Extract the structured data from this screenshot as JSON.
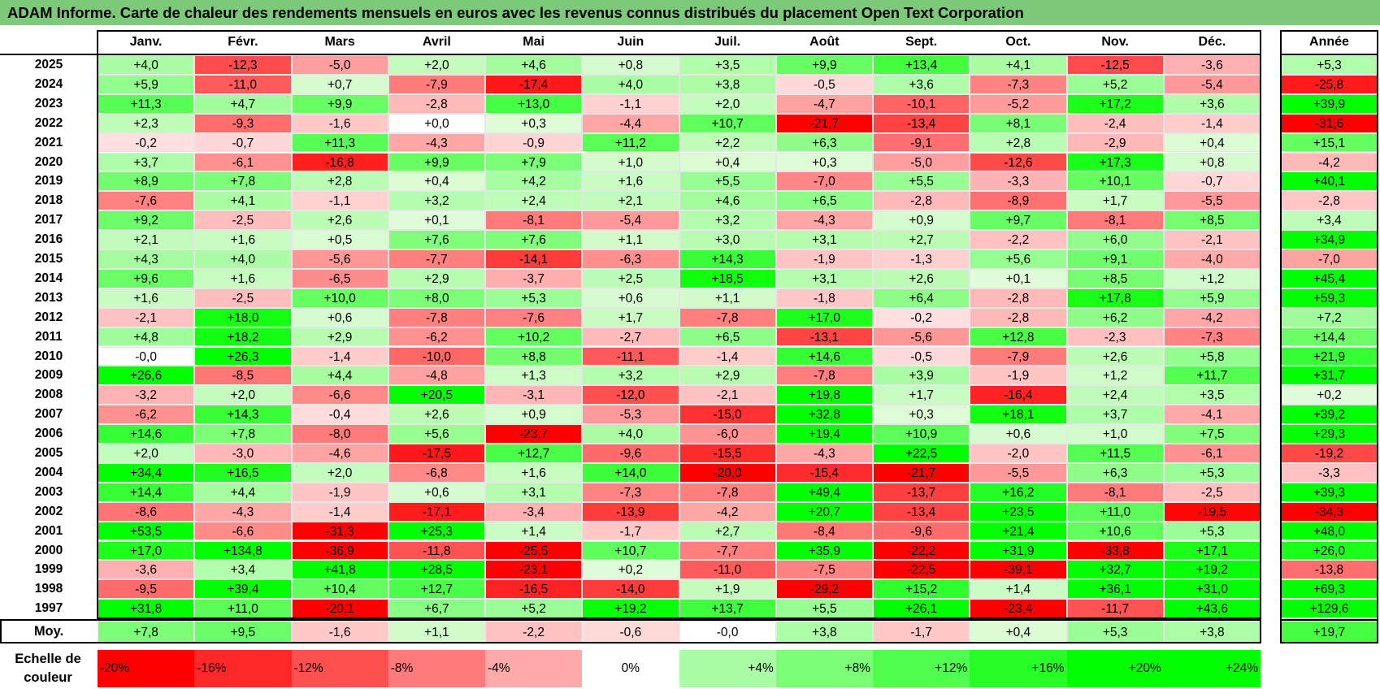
{
  "title": "ADAM Informe. Carte de chaleur des rendements mensuels en euros avec les revenus connus distribués du placement Open Text Corporation",
  "months": [
    "Janv.",
    "Févr.",
    "Mars",
    "Avril",
    "Mai",
    "Juin",
    "Juil.",
    "Août",
    "Sept.",
    "Oct.",
    "Nov.",
    "Déc."
  ],
  "year_header": "Année",
  "avg_label": "Moy.",
  "scale_label": "Echelle de couleur",
  "scale": [
    "-20%",
    "-16%",
    "-12%",
    "-8%",
    "-4%",
    "0%",
    "+4%",
    "+8%",
    "+12%",
    "+16%",
    "+20%",
    "+24%"
  ],
  "colors": {
    "title_bg": "#7dc97a",
    "neg": "#ff0000",
    "pos": "#00ff00",
    "zero": "#ffffff"
  },
  "chart_data": {
    "type": "heatmap",
    "title": "ADAM Informe. Carte de chaleur des rendements mensuels en euros avec les revenus connus distribués du placement Open Text Corporation",
    "columns": [
      "Janv.",
      "Févr.",
      "Mars",
      "Avril",
      "Mai",
      "Juin",
      "Juil.",
      "Août",
      "Sept.",
      "Oct.",
      "Nov.",
      "Déc."
    ],
    "rows": [
      {
        "year": "2025",
        "values": [
          "+4,0",
          "-12,3",
          "-5,0",
          "+2,0",
          "+4,6",
          "+0,8",
          "+3,5",
          "+9,9",
          "+13,4",
          "+4,1",
          "-12,5",
          "-3,6"
        ],
        "annual": "+5,3"
      },
      {
        "year": "2024",
        "values": [
          "+5,9",
          "-11,0",
          "+0,7",
          "-7,9",
          "-17,4",
          "+4,0",
          "+3,8",
          "-0,5",
          "+3,6",
          "-7,3",
          "+5,2",
          "-5,4"
        ],
        "annual": "-25,8"
      },
      {
        "year": "2023",
        "values": [
          "+11,3",
          "+4,7",
          "+9,9",
          "-2,8",
          "+13,0",
          "-1,1",
          "+2,0",
          "-4,7",
          "-10,1",
          "-5,2",
          "+17,2",
          "+3,6"
        ],
        "annual": "+39,9"
      },
      {
        "year": "2022",
        "values": [
          "+2,3",
          "-9,3",
          "-1,6",
          "+0,0",
          "+0,3",
          "-4,4",
          "+10,7",
          "-21,7",
          "-13,4",
          "+8,1",
          "-2,4",
          "-1,4"
        ],
        "annual": "-31,6"
      },
      {
        "year": "2021",
        "values": [
          "-0,2",
          "-0,7",
          "+11,3",
          "-4,3",
          "-0,9",
          "+11,2",
          "+2,2",
          "+6,3",
          "-9,1",
          "+2,8",
          "-2,9",
          "+0,4"
        ],
        "annual": "+15,1"
      },
      {
        "year": "2020",
        "values": [
          "+3,7",
          "-6,1",
          "-16,8",
          "+9,9",
          "+7,9",
          "+1,0",
          "+0,4",
          "+0,3",
          "-5,0",
          "-12,6",
          "+17,3",
          "+0,8"
        ],
        "annual": "-4,2"
      },
      {
        "year": "2019",
        "values": [
          "+8,9",
          "+7,8",
          "+2,8",
          "+0,4",
          "+4,2",
          "+1,6",
          "+5,5",
          "-7,0",
          "+5,5",
          "-3,3",
          "+10,1",
          "-0,7"
        ],
        "annual": "+40,1"
      },
      {
        "year": "2018",
        "values": [
          "-7,6",
          "+4,1",
          "-1,1",
          "+3,2",
          "+2,4",
          "+2,1",
          "+4,6",
          "+6,5",
          "-2,8",
          "-8,9",
          "+1,7",
          "-5,5"
        ],
        "annual": "-2,8"
      },
      {
        "year": "2017",
        "values": [
          "+9,2",
          "-2,5",
          "+2,6",
          "+0,1",
          "-8,1",
          "-5,4",
          "+3,2",
          "-4,3",
          "+0,9",
          "+9,7",
          "-8,1",
          "+8,5"
        ],
        "annual": "+3,4"
      },
      {
        "year": "2016",
        "values": [
          "+2,1",
          "+1,6",
          "+0,5",
          "+7,6",
          "+7,6",
          "+1,1",
          "+3,0",
          "+3,1",
          "+2,7",
          "-2,2",
          "+6,0",
          "-2,1"
        ],
        "annual": "+34,9"
      },
      {
        "year": "2015",
        "values": [
          "+4,3",
          "+4,0",
          "-5,6",
          "-7,7",
          "-14,1",
          "-6,3",
          "+14,3",
          "-1,9",
          "-1,3",
          "+5,6",
          "+9,1",
          "-4,0"
        ],
        "annual": "-7,0"
      },
      {
        "year": "2014",
        "values": [
          "+9,6",
          "+1,6",
          "-6,5",
          "+2,9",
          "-3,7",
          "+2,5",
          "+18,5",
          "+3,1",
          "+2,6",
          "+0,1",
          "+8,5",
          "+1,2"
        ],
        "annual": "+45,4"
      },
      {
        "year": "2013",
        "values": [
          "+1,6",
          "-2,5",
          "+10,0",
          "+8,0",
          "+5,3",
          "+0,6",
          "+1,1",
          "-1,8",
          "+6,4",
          "-2,8",
          "+17,8",
          "+5,9"
        ],
        "annual": "+59,3"
      },
      {
        "year": "2012",
        "values": [
          "-2,1",
          "+18,0",
          "+0,6",
          "-7,8",
          "-7,6",
          "+1,7",
          "-7,8",
          "+17,0",
          "-0,2",
          "-2,8",
          "+6,2",
          "-4,2"
        ],
        "annual": "+7,2"
      },
      {
        "year": "2011",
        "values": [
          "+4,8",
          "+18,2",
          "+2,9",
          "-6,2",
          "+10,2",
          "-2,7",
          "+6,5",
          "-13,1",
          "-5,6",
          "+12,8",
          "-2,3",
          "-7,3"
        ],
        "annual": "+14,4"
      },
      {
        "year": "2010",
        "values": [
          "-0,0",
          "+26,3",
          "-1,4",
          "-10,0",
          "+8,8",
          "-11,1",
          "-1,4",
          "+14,6",
          "-0,5",
          "-7,9",
          "+2,6",
          "+5,8"
        ],
        "annual": "+21,9"
      },
      {
        "year": "2009",
        "values": [
          "+26,6",
          "-8,5",
          "+4,4",
          "-4,8",
          "+1,3",
          "+3,2",
          "+2,9",
          "-7,8",
          "+3,9",
          "-1,9",
          "+1,2",
          "+11,7"
        ],
        "annual": "+31,7"
      },
      {
        "year": "2008",
        "values": [
          "-3,2",
          "+2,0",
          "-6,6",
          "+20,5",
          "-3,1",
          "-12,0",
          "-2,1",
          "+19,8",
          "+1,7",
          "-16,4",
          "+2,4",
          "+3,5"
        ],
        "annual": "+0,2"
      },
      {
        "year": "2007",
        "values": [
          "-6,2",
          "+14,3",
          "-0,4",
          "+2,6",
          "+0,9",
          "-5,3",
          "-15,0",
          "+32,8",
          "+0,3",
          "+18,1",
          "+3,7",
          "-4,1"
        ],
        "annual": "+39,2"
      },
      {
        "year": "2006",
        "values": [
          "+14,6",
          "+7,8",
          "-8,0",
          "+5,6",
          "-23,7",
          "+4,0",
          "-6,0",
          "+19,4",
          "+10,9",
          "+0,6",
          "+1,0",
          "+7,5"
        ],
        "annual": "+29,3"
      },
      {
        "year": "2005",
        "values": [
          "+2,0",
          "-3,0",
          "-4,6",
          "-17,5",
          "+12,7",
          "-9,6",
          "-15,5",
          "-4,3",
          "+22,5",
          "-2,0",
          "+11,5",
          "-6,1"
        ],
        "annual": "-19,2"
      },
      {
        "year": "2004",
        "values": [
          "+34,4",
          "+16,5",
          "+2,0",
          "-6,8",
          "+1,6",
          "+14,0",
          "-20,0",
          "-15,4",
          "-21,7",
          "-5,5",
          "+6,3",
          "+5,3"
        ],
        "annual": "-3,3"
      },
      {
        "year": "2003",
        "values": [
          "+14,4",
          "+4,4",
          "-1,9",
          "+0,6",
          "+3,1",
          "-7,3",
          "-7,8",
          "+49,4",
          "-13,7",
          "+16,2",
          "-8,1",
          "-2,5"
        ],
        "annual": "+39,3"
      },
      {
        "year": "2002",
        "values": [
          "-8,6",
          "-4,3",
          "-1,4",
          "-17,1",
          "-3,4",
          "-13,9",
          "-4,2",
          "+20,7",
          "-13,4",
          "+23,5",
          "+11,0",
          "-19,5"
        ],
        "annual": "-34,3"
      },
      {
        "year": "2001",
        "values": [
          "+53,5",
          "-6,6",
          "-31,3",
          "+25,3",
          "+1,4",
          "-1,7",
          "+2,7",
          "-8,4",
          "-9,6",
          "+21,4",
          "+10,6",
          "+5,3"
        ],
        "annual": "+48,0"
      },
      {
        "year": "2000",
        "values": [
          "+17,0",
          "+134,8",
          "-36,9",
          "-11,8",
          "-25,5",
          "+10,7",
          "-7,7",
          "+35,9",
          "-22,2",
          "+31,9",
          "-33,8",
          "+17,1"
        ],
        "annual": "+26,0"
      },
      {
        "year": "1999",
        "values": [
          "-3,6",
          "+3,4",
          "+41,8",
          "+28,5",
          "-23,1",
          "+0,2",
          "-11,0",
          "-7,5",
          "-22,5",
          "-39,1",
          "+32,7",
          "+19,2"
        ],
        "annual": "-13,8"
      },
      {
        "year": "1998",
        "values": [
          "-9,5",
          "+39,4",
          "+10,4",
          "+12,7",
          "-16,5",
          "-14,0",
          "+1,9",
          "-29,2",
          "+15,2",
          "+1,4",
          "+36,1",
          "+31,0"
        ],
        "annual": "+69,3"
      },
      {
        "year": "1997",
        "values": [
          "+31,8",
          "+11,0",
          "-20,1",
          "+6,7",
          "+5,2",
          "+19,2",
          "+13,7",
          "+5,5",
          "+26,1",
          "-23,4",
          "-11,7",
          "+43,6"
        ],
        "annual": "+129,6"
      }
    ],
    "averages": {
      "values": [
        "+7,8",
        "+9,5",
        "-1,6",
        "+1,1",
        "-2,2",
        "-0,6",
        "-0,0",
        "+3,8",
        "-1,7",
        "+0,4",
        "+5,3",
        "+3,8"
      ],
      "annual": "+19,7"
    }
  }
}
